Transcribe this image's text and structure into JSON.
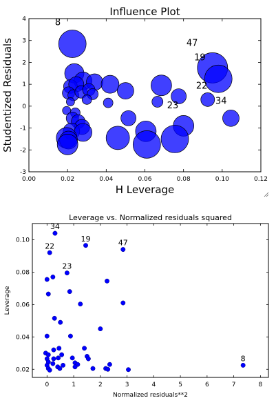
{
  "colors": {
    "marker": "#0000ff",
    "axes": "#000000",
    "background": "#ffffff"
  },
  "chart_data": [
    {
      "type": "scatter",
      "variant": "bubble",
      "title": "Influence Plot",
      "xlabel": "H Leverage",
      "ylabel": "Studentized Residuals",
      "xlim": [
        0.0,
        0.12
      ],
      "ylim": [
        -3,
        4
      ],
      "xticks": [
        0.0,
        0.02,
        0.04,
        0.06,
        0.08,
        0.1,
        0.12
      ],
      "xtick_labels": [
        "0.00",
        "0.02",
        "0.04",
        "0.06",
        "0.08",
        "0.10",
        "0.12"
      ],
      "yticks": [
        -3,
        -2,
        -1,
        0,
        1,
        2,
        3,
        4
      ],
      "ytick_labels": [
        "-3",
        "-2",
        "-1",
        "0",
        "1",
        "2",
        "3",
        "4"
      ],
      "grid": false,
      "marker_alpha": 0.75,
      "points": [
        {
          "x": 0.0225,
          "y": 2.85,
          "r": 20
        },
        {
          "x": 0.095,
          "y": 1.75,
          "r": 22
        },
        {
          "x": 0.098,
          "y": 1.25,
          "r": 20
        },
        {
          "x": 0.0235,
          "y": 1.5,
          "r": 14
        },
        {
          "x": 0.028,
          "y": 1.15,
          "r": 13
        },
        {
          "x": 0.034,
          "y": 1.1,
          "r": 12
        },
        {
          "x": 0.0215,
          "y": 0.9,
          "r": 10
        },
        {
          "x": 0.0245,
          "y": 1.0,
          "r": 11
        },
        {
          "x": 0.0205,
          "y": 0.6,
          "r": 9
        },
        {
          "x": 0.023,
          "y": 0.5,
          "r": 8
        },
        {
          "x": 0.027,
          "y": 0.65,
          "r": 9
        },
        {
          "x": 0.031,
          "y": 0.75,
          "r": 9
        },
        {
          "x": 0.033,
          "y": 0.55,
          "r": 8
        },
        {
          "x": 0.03,
          "y": 0.3,
          "r": 7
        },
        {
          "x": 0.0215,
          "y": 0.2,
          "r": 6
        },
        {
          "x": 0.0195,
          "y": -0.2,
          "r": 6
        },
        {
          "x": 0.024,
          "y": -0.3,
          "r": 7
        },
        {
          "x": 0.0225,
          "y": -0.55,
          "r": 9
        },
        {
          "x": 0.0255,
          "y": -0.7,
          "r": 10
        },
        {
          "x": 0.0275,
          "y": -0.95,
          "r": 11
        },
        {
          "x": 0.022,
          "y": -1.15,
          "r": 12
        },
        {
          "x": 0.028,
          "y": -1.2,
          "r": 13
        },
        {
          "x": 0.0195,
          "y": -1.45,
          "r": 15
        },
        {
          "x": 0.0205,
          "y": -1.55,
          "r": 13
        },
        {
          "x": 0.02,
          "y": -1.75,
          "r": 15
        },
        {
          "x": 0.042,
          "y": 1.0,
          "r": 13
        },
        {
          "x": 0.05,
          "y": 0.7,
          "r": 12
        },
        {
          "x": 0.041,
          "y": 0.15,
          "r": 7
        },
        {
          "x": 0.0515,
          "y": -0.55,
          "r": 11
        },
        {
          "x": 0.046,
          "y": -1.45,
          "r": 17
        },
        {
          "x": 0.0605,
          "y": -1.15,
          "r": 15
        },
        {
          "x": 0.061,
          "y": -1.75,
          "r": 20
        },
        {
          "x": 0.0685,
          "y": 0.95,
          "r": 15
        },
        {
          "x": 0.0665,
          "y": 0.2,
          "r": 8
        },
        {
          "x": 0.0775,
          "y": 0.45,
          "r": 11
        },
        {
          "x": 0.08,
          "y": -0.9,
          "r": 15
        },
        {
          "x": 0.0755,
          "y": -1.5,
          "r": 20
        },
        {
          "x": 0.0925,
          "y": 0.3,
          "r": 10
        },
        {
          "x": 0.1045,
          "y": -0.55,
          "r": 12
        }
      ],
      "annotations": [
        {
          "text": "8",
          "x": 0.0135,
          "y": 3.7
        },
        {
          "text": "47",
          "x": 0.0815,
          "y": 2.75
        },
        {
          "text": "19",
          "x": 0.0855,
          "y": 2.1
        },
        {
          "text": "22",
          "x": 0.0865,
          "y": 0.8
        },
        {
          "text": "23",
          "x": 0.0715,
          "y": -0.1
        },
        {
          "text": "34",
          "x": 0.0965,
          "y": 0.1
        }
      ]
    },
    {
      "type": "scatter",
      "title": "Leverage vs. Normalized residuals squared",
      "xlabel": "Normalized residuals**2",
      "ylabel": "Leverage",
      "xlim": [
        -0.55,
        8.3
      ],
      "ylim": [
        0.015,
        0.11
      ],
      "xticks": [
        0,
        1,
        2,
        3,
        4,
        5,
        6,
        7,
        8
      ],
      "xtick_labels": [
        "0",
        "1",
        "2",
        "3",
        "4",
        "5",
        "6",
        "7",
        "8"
      ],
      "yticks": [
        0.02,
        0.04,
        0.06,
        0.08,
        0.1
      ],
      "ytick_labels": [
        "0.02",
        "0.04",
        "0.06",
        "0.08",
        "0.10"
      ],
      "grid": false,
      "points": [
        {
          "x": 0.3,
          "y": 0.104
        },
        {
          "x": 0.1,
          "y": 0.092
        },
        {
          "x": 1.45,
          "y": 0.0965
        },
        {
          "x": 2.85,
          "y": 0.094
        },
        {
          "x": 0.75,
          "y": 0.0795
        },
        {
          "x": 0.22,
          "y": 0.077
        },
        {
          "x": 0.0,
          "y": 0.0755
        },
        {
          "x": 2.25,
          "y": 0.0745
        },
        {
          "x": 0.85,
          "y": 0.068
        },
        {
          "x": 0.05,
          "y": 0.0665
        },
        {
          "x": 1.25,
          "y": 0.0603
        },
        {
          "x": 2.85,
          "y": 0.061
        },
        {
          "x": 0.28,
          "y": 0.0515
        },
        {
          "x": 0.5,
          "y": 0.049
        },
        {
          "x": 2.0,
          "y": 0.045
        },
        {
          "x": 0.0,
          "y": 0.0405
        },
        {
          "x": 0.88,
          "y": 0.0405
        },
        {
          "x": 1.4,
          "y": 0.033
        },
        {
          "x": 0.25,
          "y": 0.032
        },
        {
          "x": 0.45,
          "y": 0.033
        },
        {
          "x": -0.05,
          "y": 0.03
        },
        {
          "x": 0.05,
          "y": 0.029
        },
        {
          "x": 0.55,
          "y": 0.029
        },
        {
          "x": 0.95,
          "y": 0.027
        },
        {
          "x": 1.5,
          "y": 0.028
        },
        {
          "x": 0.0,
          "y": 0.0265
        },
        {
          "x": 0.25,
          "y": 0.0265
        },
        {
          "x": 0.42,
          "y": 0.027
        },
        {
          "x": 1.55,
          "y": 0.0265
        },
        {
          "x": 0.05,
          "y": 0.0245
        },
        {
          "x": 0.22,
          "y": 0.0235
        },
        {
          "x": 1.05,
          "y": 0.024
        },
        {
          "x": 0.0,
          "y": 0.0225
        },
        {
          "x": 0.4,
          "y": 0.0215
        },
        {
          "x": 0.6,
          "y": 0.0225
        },
        {
          "x": 1.15,
          "y": 0.023
        },
        {
          "x": 2.35,
          "y": 0.023
        },
        {
          "x": 1.05,
          "y": 0.0215
        },
        {
          "x": 0.05,
          "y": 0.0205
        },
        {
          "x": 0.48,
          "y": 0.0205
        },
        {
          "x": 1.72,
          "y": 0.0205
        },
        {
          "x": 2.2,
          "y": 0.0205
        },
        {
          "x": 2.28,
          "y": 0.02
        },
        {
          "x": 3.05,
          "y": 0.0198
        },
        {
          "x": 0.1,
          "y": 0.0195
        },
        {
          "x": 7.35,
          "y": 0.0225
        }
      ],
      "annotations": [
        {
          "text": "34",
          "x": 0.3,
          "y": 0.1065
        },
        {
          "text": "22",
          "x": 0.1,
          "y": 0.0945
        },
        {
          "text": "19",
          "x": 1.45,
          "y": 0.099
        },
        {
          "text": "47",
          "x": 2.85,
          "y": 0.0965
        },
        {
          "text": "23",
          "x": 0.75,
          "y": 0.082
        },
        {
          "text": "8",
          "x": 7.35,
          "y": 0.025
        }
      ]
    }
  ]
}
